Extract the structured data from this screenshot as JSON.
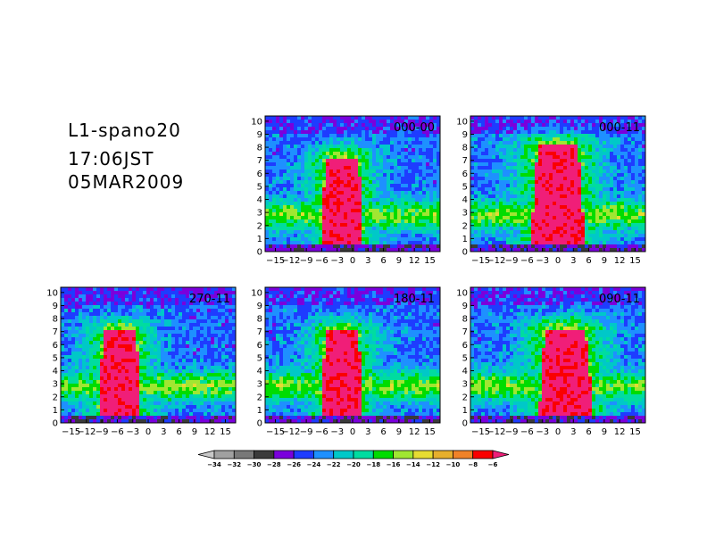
{
  "header": {
    "title": "L1-spano20",
    "time": "17:06JST",
    "date": "05MAR2009"
  },
  "chart_data": {
    "type": "heatmap",
    "y_ticks": [
      0,
      1,
      2,
      3,
      4,
      5,
      6,
      7,
      8,
      9,
      10
    ],
    "x_ticks": [
      -15,
      -12,
      -9,
      -6,
      -3,
      0,
      3,
      6,
      9,
      12,
      15
    ],
    "x_tick_labels": [
      "−15",
      "−12",
      "−9",
      "−6",
      "−3",
      "0",
      "3",
      "6",
      "9",
      "12",
      "15"
    ],
    "xlim": [
      -17,
      17
    ],
    "ylim": [
      0,
      10.4
    ],
    "grid": false,
    "panels": [
      {
        "label": "000-00",
        "row": 0,
        "col": 1,
        "cx": -2,
        "top": 7.2,
        "width": 8
      },
      {
        "label": "000-11",
        "row": 0,
        "col": 2,
        "cx": 0,
        "top": 8.1,
        "width": 10
      },
      {
        "label": "270-11",
        "row": 1,
        "col": 0,
        "cx": -5.5,
        "top": 7.0,
        "width": 8
      },
      {
        "label": "180-11",
        "row": 1,
        "col": 1,
        "cx": -2,
        "top": 7.0,
        "width": 8
      },
      {
        "label": "090-11",
        "row": 1,
        "col": 2,
        "cx": 1.5,
        "top": 7.2,
        "width": 10
      }
    ],
    "colorbar": {
      "levels": [
        -34,
        -32,
        -30,
        -28,
        -26,
        -24,
        -22,
        -20,
        -18,
        -16,
        -14,
        -12,
        -10,
        -8,
        -6
      ],
      "labels": [
        "−34",
        "−32",
        "−30",
        "−28",
        "−26",
        "−24",
        "−22",
        "−20",
        "−18",
        "−16",
        "−14",
        "−12",
        "−10",
        "−8",
        "−6"
      ],
      "colors": [
        "#c8c8c8",
        "#a0a0a0",
        "#787878",
        "#3a3a3a",
        "#7a00dc",
        "#1e3cff",
        "#1e90ff",
        "#00c8c8",
        "#00dca0",
        "#00dc00",
        "#a0e632",
        "#e6dc32",
        "#e6af2d",
        "#f08228",
        "#fa0000",
        "#f01e78"
      ]
    }
  }
}
